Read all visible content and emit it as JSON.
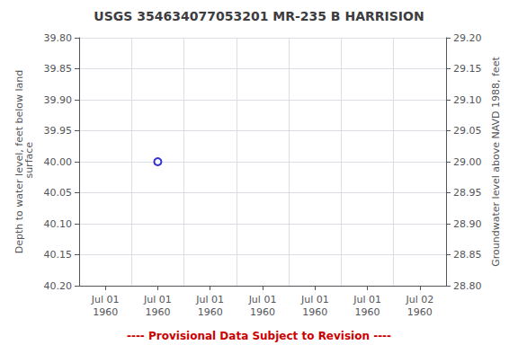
{
  "chart_data": {
    "type": "scatter",
    "title": "USGS 354634077053201 MR-235 B HARRISION",
    "categories": [
      "Jul 01\n1960",
      "Jul 01\n1960",
      "Jul 01\n1960",
      "Jul 01\n1960",
      "Jul 01\n1960",
      "Jul 01\n1960",
      "Jul 02\n1960"
    ],
    "values": [
      null,
      40.0,
      null,
      null,
      null,
      null,
      null
    ],
    "color": "#0000cc",
    "marker": "circle",
    "ylabel": "Depth to water level, feet below land\n surface",
    "y2label": "Groundwater level above NAVD 1988, feet",
    "ylim": [
      40.2,
      39.8
    ],
    "yticks": [
      {
        "value": 39.8,
        "label": "39.80"
      },
      {
        "value": 39.85,
        "label": "39.85"
      },
      {
        "value": 39.9,
        "label": "39.90"
      },
      {
        "value": 39.95,
        "label": "39.95"
      },
      {
        "value": 40.0,
        "label": "40.00"
      },
      {
        "value": 40.05,
        "label": "40.05"
      },
      {
        "value": 40.1,
        "label": "40.10"
      },
      {
        "value": 40.15,
        "label": "40.15"
      },
      {
        "value": 40.2,
        "label": "40.20"
      }
    ],
    "y2lim": [
      28.8,
      29.2
    ],
    "y2ticks": [
      {
        "value": 28.8,
        "label": "28.80"
      },
      {
        "value": 28.85,
        "label": "28.85"
      },
      {
        "value": 28.9,
        "label": "28.90"
      },
      {
        "value": 28.95,
        "label": "28.95"
      },
      {
        "value": 29.0,
        "label": "29.00"
      },
      {
        "value": 29.05,
        "label": "29.05"
      },
      {
        "value": 29.1,
        "label": "29.10"
      },
      {
        "value": 29.15,
        "label": "29.15"
      },
      {
        "value": 29.2,
        "label": "29.20"
      }
    ],
    "grid": true,
    "annotations": [
      {
        "text": "---- Provisional Data Subject to Revision ----",
        "color": "#cc0000"
      }
    ]
  }
}
